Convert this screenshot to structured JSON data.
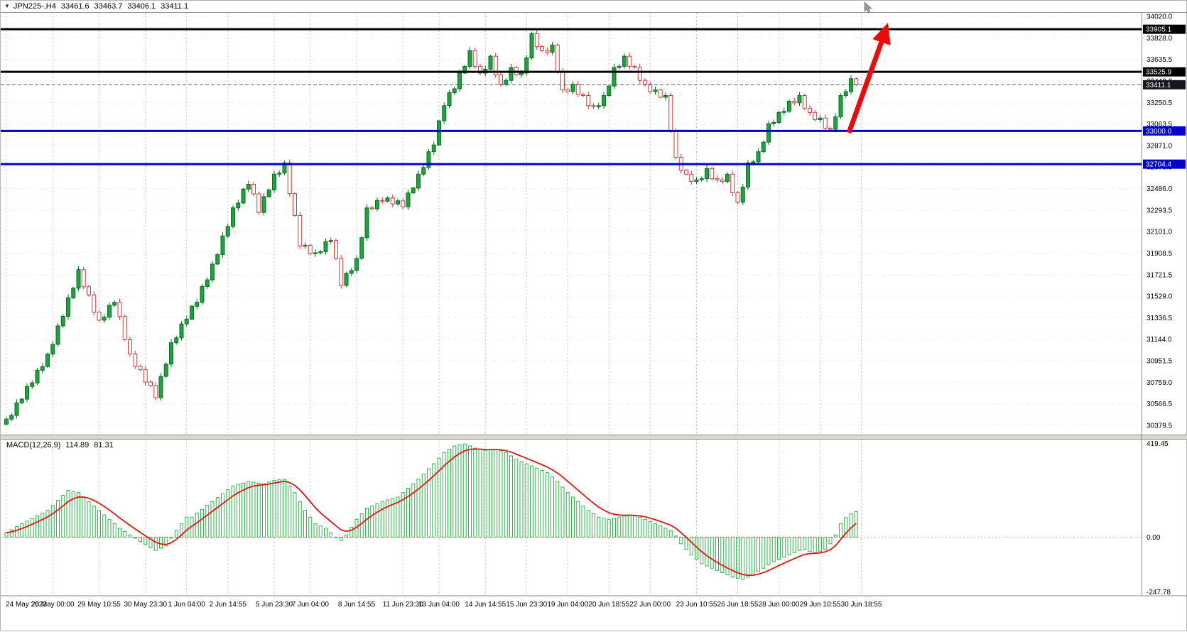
{
  "header": {
    "symbol_period": "JPN225-,H4",
    "open": "33461.6",
    "high": "33463.7",
    "low": "33406.1",
    "close": "33411.1"
  },
  "icons": {
    "symbol_marker": "▼"
  },
  "colors": {
    "background": "#ffffff",
    "grid": "#d4d4d4",
    "frame": "#8c8c8c",
    "axis_text": "#000000",
    "up_fill": "#1ea43c",
    "up_stroke": "#0b6e26",
    "down_fill": "#ffffff",
    "down_stroke": "#d03a3a",
    "macd_bar": "#2db44a",
    "macd_signal": "#e51414",
    "level_black": "#000000",
    "level_blue": "#0000c8",
    "current_price_line": "#5a5a5a",
    "arrow": "#ea0b0b",
    "divider_fill": "#d9d6cf",
    "badge_text": "#ffffff"
  },
  "chart_data": {
    "type": "candlestick",
    "symbol": "JPN225-",
    "timeframe": "H4",
    "price_axis": {
      "max": 34020.0,
      "min": 30379.5,
      "ticks": [
        "34020.0",
        "33828.0",
        "33635.5",
        "33443.0",
        "33250.5",
        "33063.5",
        "32871.0",
        "32678.5",
        "32486.0",
        "32293.5",
        "32101.0",
        "31908.5",
        "31721.5",
        "31529.0",
        "31336.5",
        "31144.0",
        "30951.5",
        "30759.0",
        "30566.5",
        "30379.5"
      ]
    },
    "time_axis": {
      "labels": [
        {
          "t": "24 May 2023",
          "i": 0
        },
        {
          "t": "26 May 00:00",
          "i": 9
        },
        {
          "t": "29 May 10:55",
          "i": 18
        },
        {
          "t": "30 May 23:30",
          "i": 27
        },
        {
          "t": "1 Jun 04:00",
          "i": 35
        },
        {
          "t": "2 Jun 14:55",
          "i": 43
        },
        {
          "t": "5 Jun 23:30",
          "i": 52
        },
        {
          "t": "7 Jun 04:00",
          "i": 59
        },
        {
          "t": "8 Jun 14:55",
          "i": 68
        },
        {
          "t": "11 Jun 23:30",
          "i": 77
        },
        {
          "t": "13 Jun 04:00",
          "i": 84
        },
        {
          "t": "14 Jun 14:55",
          "i": 93
        },
        {
          "t": "15 Jun 23:30",
          "i": 101
        },
        {
          "t": "19 Jun 04:00",
          "i": 109
        },
        {
          "t": "20 Jun 18:55",
          "i": 117
        },
        {
          "t": "22 Jun 00:00",
          "i": 125
        },
        {
          "t": "23 Jun 10:55",
          "i": 134
        },
        {
          "t": "26 Jun 18:55",
          "i": 142
        },
        {
          "t": "28 Jun 00:00",
          "i": 150
        },
        {
          "t": "29 Jun 10:55",
          "i": 158
        },
        {
          "t": "30 Jun 18:55",
          "i": 166
        }
      ]
    },
    "candles": {
      "note": "H4 closes, estimated from pixels; opens derived from prior close",
      "closes": [
        30435,
        30468,
        30580,
        30613,
        30725,
        30758,
        30870,
        30903,
        31015,
        31100,
        31265,
        31350,
        31515,
        31600,
        31765,
        31613,
        31540,
        31388,
        31315,
        31342,
        31448,
        31475,
        31348,
        31142,
        31015,
        30905,
        30875,
        30765,
        30735,
        30625,
        30815,
        30925,
        31115,
        31158,
        31282,
        31325,
        31440,
        31475,
        31615,
        31675,
        31815,
        31900,
        32065,
        32150,
        32315,
        32358,
        32482,
        32525,
        32440,
        32275,
        32415,
        32475,
        32615,
        32625,
        32715,
        32442,
        32248,
        31975,
        31982,
        31908,
        31915,
        31925,
        32015,
        32025,
        31865,
        31625,
        31732,
        31758,
        31865,
        32050,
        32315,
        32308,
        32382,
        32375,
        32403,
        32350,
        32378,
        32325,
        32448,
        32492,
        32615,
        32675,
        32815,
        32875,
        33090,
        33225,
        33340,
        33375,
        33515,
        33575,
        33715,
        33575,
        33515,
        33550,
        33665,
        33500,
        33415,
        33450,
        33565,
        33500,
        33515,
        33650,
        33865,
        33750,
        33715,
        33700,
        33765,
        33525,
        33365,
        33350,
        33415,
        33325,
        33315,
        33225,
        33215,
        33225,
        33315,
        33400,
        33565,
        33575,
        33665,
        33575,
        33565,
        33450,
        33415,
        33350,
        33365,
        33300,
        33315,
        33000,
        32765,
        32650,
        32615,
        32550,
        32565,
        32575,
        32665,
        32575,
        32565,
        32550,
        32615,
        32450,
        32365,
        32500,
        32715,
        32725,
        32815,
        32900,
        33065,
        33075,
        33165,
        33175,
        33265,
        33250,
        33315,
        33200,
        33165,
        33100,
        33115,
        33025,
        33015,
        33125,
        33315,
        33350,
        33465,
        33411
      ]
    },
    "levels": [
      {
        "label": "33905.1",
        "price": 33905.1,
        "color": "#000000",
        "badge_bg": "#000000"
      },
      {
        "label": "33525.9",
        "price": 33525.9,
        "color": "#000000",
        "badge_bg": "#000000"
      },
      {
        "label": "33000.0",
        "price": 33000.0,
        "color": "#0000c8",
        "badge_bg": "#0000c8"
      },
      {
        "label": "32704.4",
        "price": 32704.4,
        "color": "#0000c8",
        "badge_bg": "#0000c8"
      }
    ],
    "current_price": {
      "value": 33411.1,
      "label": "33411.1",
      "badge_bg": "#16161e"
    },
    "macd": {
      "label": "MACD(12,26,9)",
      "value_main": "114.89",
      "value_signal": "81.31",
      "axis": {
        "max_label": "419.45",
        "zero_label": "0.00",
        "min_label": "-247.78",
        "max_value": 419.45,
        "min_value": -247.78
      },
      "values": [
        20,
        33,
        47,
        60,
        72,
        84,
        96,
        108,
        120,
        142,
        165,
        188,
        210,
        205,
        200,
        180,
        160,
        140,
        120,
        100,
        80,
        60,
        40,
        25,
        10,
        -5,
        -20,
        -33,
        -47,
        -60,
        -50,
        -40,
        -5,
        30,
        60,
        90,
        90,
        108,
        125,
        143,
        160,
        178,
        195,
        213,
        230,
        237,
        243,
        250,
        247,
        243,
        240,
        248,
        255,
        258,
        260,
        230,
        200,
        160,
        120,
        90,
        60,
        50,
        40,
        20,
        0,
        -15,
        10,
        45,
        80,
        105,
        130,
        140,
        150,
        160,
        167,
        173,
        180,
        200,
        220,
        240,
        260,
        283,
        307,
        330,
        355,
        380,
        395,
        410,
        415,
        419,
        410,
        400,
        395,
        390,
        393,
        395,
        388,
        380,
        365,
        350,
        340,
        330,
        320,
        310,
        300,
        290,
        270,
        250,
        225,
        200,
        180,
        160,
        140,
        120,
        105,
        90,
        85,
        80,
        85,
        90,
        95,
        100,
        95,
        90,
        80,
        70,
        60,
        50,
        40,
        30,
        5,
        -30,
        -55,
        -80,
        -100,
        -120,
        -130,
        -140,
        -150,
        -160,
        -170,
        -180,
        -185,
        -190,
        -180,
        -170,
        -155,
        -140,
        -125,
        -110,
        -100,
        -90,
        -80,
        -70,
        -60,
        -55,
        -65,
        -70,
        -65,
        -55,
        -30,
        10,
        60,
        88,
        105,
        114.89
      ]
    },
    "annotation": {
      "type": "arrow-up",
      "color": "#ea0b0b",
      "from_price": 33000,
      "to_price": 33905
    }
  }
}
